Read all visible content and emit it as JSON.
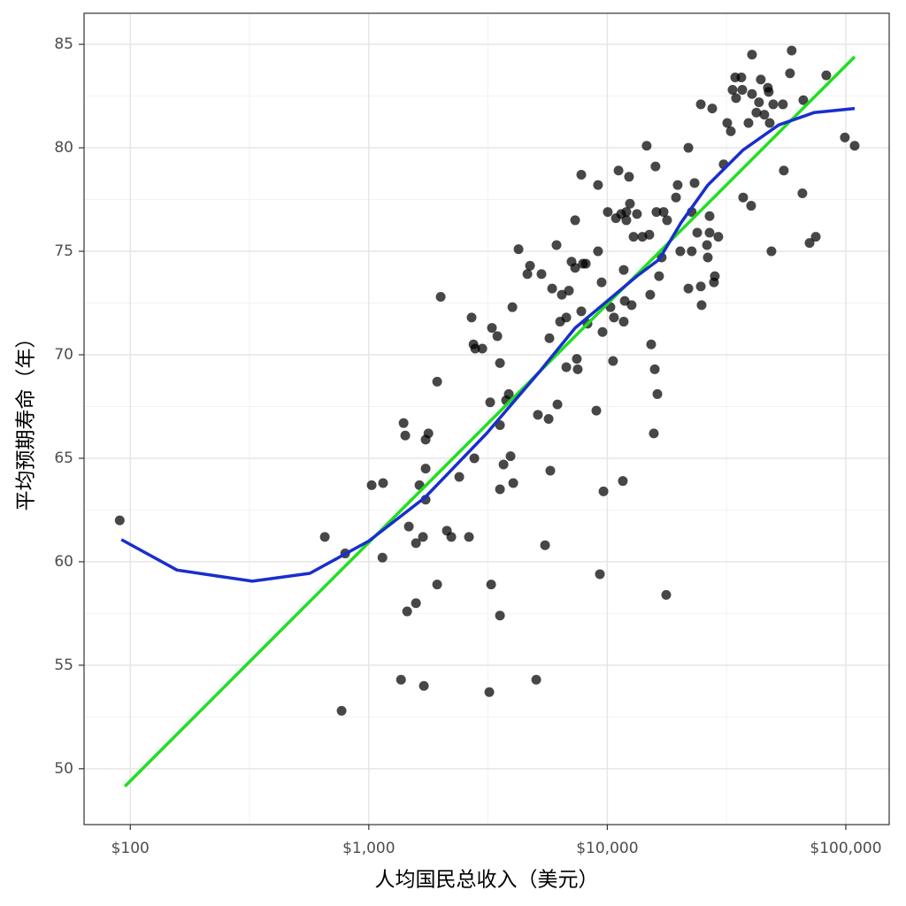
{
  "chart_data": {
    "type": "scatter",
    "xlabel": "人均国民总收入（美元）",
    "ylabel": "平均预期寿命（年）",
    "log_x": true,
    "grid": true,
    "xlim": [
      64,
      152000
    ],
    "ylim": [
      47.3,
      86.5
    ],
    "xticks": [
      {
        "value": 100,
        "label": "$100"
      },
      {
        "value": 1000,
        "label": "$1,000"
      },
      {
        "value": 10000,
        "label": "$10,000"
      },
      {
        "value": 100000,
        "label": "$100,000"
      }
    ],
    "yticks": [
      50,
      55,
      60,
      65,
      70,
      75,
      80,
      85
    ],
    "xminor": [
      316.2,
      3162,
      31620
    ],
    "yminor": [
      52.5,
      57.5,
      62.5,
      67.5,
      72.5,
      77.5,
      82.5
    ],
    "points": {
      "color": "#000000",
      "x": [
        90.3,
        654,
        796,
        769,
        1028,
        1148,
        1141,
        1399,
        1422,
        1472,
        1448,
        1365,
        1702,
        1577,
        1577,
        1687,
        1631,
        1731,
        1731,
        1778,
        1731,
        1935,
        1935,
        2125,
        2218,
        2395,
        2002,
        2630,
        2698,
        2748,
        2793,
        2992,
        2770,
        3201,
        3258,
        3228,
        3283,
        3459,
        3548,
        3548,
        3548,
        3548,
        3672,
        3765,
        3863,
        3929,
        4034,
        4000,
        4244,
        4624,
        4742,
        5035,
        5117,
        5297,
        5483,
        5675,
        5768,
        5720,
        5871,
        6124,
        6180,
        6340,
        6447,
        6730,
        6903,
        6730,
        7081,
        7331,
        7331,
        7450,
        7516,
        7780,
        7907,
        7780,
        8124,
        8260,
        8995,
        9143,
        9143,
        9309,
        9548,
        9465,
        9638,
        10046,
        10306,
        10568,
        10665,
        10865,
        11143,
        11428,
        11620,
        11718,
        11829,
        11718,
        12021,
        12021,
        12334,
        12444,
        12647,
        12882,
        13316,
        14030,
        14622,
        15005,
        15135,
        15272,
        15668,
        15812,
        15922,
        16069,
        16218,
        16482,
        16904,
        17219,
        17810,
        17660,
        19408,
        19725,
        20230,
        21880,
        21880,
        22594,
        22594,
        23220,
        23830,
        24660,
        24660,
        24850,
        26180,
        26380,
        26840,
        26840,
        27540,
        28000,
        28240,
        29210,
        30750,
        31830,
        32950,
        33510,
        34370,
        34660,
        36490,
        36810,
        37120,
        39080,
        40090,
        40430,
        40430,
        42170,
        43250,
        44020,
        45540,
        47120,
        47510,
        47960,
        48770,
        49630,
        54960,
        54480,
        58340,
        59290,
        65760,
        66370,
        70470,
        74820,
        82830,
        99080,
        108900
      ],
      "y": [
        62.0,
        61.2,
        60.4,
        52.8,
        63.7,
        63.8,
        60.2,
        66.7,
        66.1,
        61.7,
        57.6,
        54.3,
        54.0,
        58.0,
        60.9,
        61.2,
        63.7,
        64.5,
        65.9,
        66.2,
        63.0,
        68.7,
        58.9,
        61.5,
        61.2,
        64.1,
        72.8,
        61.2,
        71.8,
        70.5,
        70.3,
        70.3,
        65.0,
        53.7,
        58.9,
        67.7,
        71.3,
        70.9,
        69.6,
        57.4,
        63.5,
        66.6,
        64.7,
        67.8,
        68.1,
        65.1,
        63.8,
        72.3,
        75.1,
        73.9,
        74.3,
        54.3,
        67.1,
        73.9,
        60.8,
        66.9,
        64.4,
        70.8,
        73.2,
        75.3,
        67.6,
        71.6,
        72.9,
        71.8,
        73.1,
        69.4,
        74.5,
        74.2,
        76.5,
        69.8,
        69.3,
        72.1,
        74.4,
        78.7,
        74.4,
        71.5,
        67.3,
        78.2,
        75.0,
        59.4,
        71.1,
        73.5,
        63.4,
        76.9,
        72.3,
        69.7,
        71.8,
        76.6,
        78.9,
        76.8,
        63.9,
        74.1,
        72.6,
        71.6,
        76.9,
        76.5,
        78.6,
        77.3,
        72.4,
        75.7,
        76.8,
        75.7,
        80.1,
        75.8,
        72.9,
        70.5,
        66.2,
        69.3,
        79.1,
        76.9,
        68.1,
        73.8,
        74.7,
        76.9,
        76.5,
        58.4,
        77.6,
        78.2,
        75.0,
        80.0,
        73.2,
        75.0,
        76.9,
        78.3,
        75.9,
        82.1,
        73.3,
        72.4,
        75.3,
        74.7,
        75.9,
        76.7,
        81.9,
        73.5,
        73.8,
        75.7,
        79.2,
        81.2,
        80.8,
        82.8,
        83.4,
        82.4,
        83.4,
        82.8,
        77.6,
        81.2,
        77.2,
        84.5,
        82.6,
        81.7,
        82.2,
        83.3,
        81.6,
        82.9,
        82.7,
        81.2,
        75.0,
        82.1,
        78.9,
        82.1,
        83.6,
        84.7,
        77.8,
        82.3,
        75.4,
        75.7,
        83.5,
        80.5,
        80.1
      ]
    },
    "lines": [
      {
        "color": "#1ee01e",
        "x": [
          95,
          108900
        ],
        "y": [
          49.15,
          84.4
        ]
      },
      {
        "color": "#1a2ecc",
        "x": [
          91.8,
          157,
          325,
          566,
          1000,
          1718,
          3119,
          5212,
          7331,
          10000,
          13300,
          16480,
          20420,
          26380,
          37120,
          52240,
          73460,
          108900
        ],
        "y": [
          61.07,
          59.6,
          59.06,
          59.44,
          61.0,
          63.1,
          66.2,
          69.2,
          71.3,
          72.6,
          73.8,
          74.6,
          76.4,
          78.2,
          79.9,
          81.1,
          81.7,
          81.9
        ]
      }
    ]
  }
}
